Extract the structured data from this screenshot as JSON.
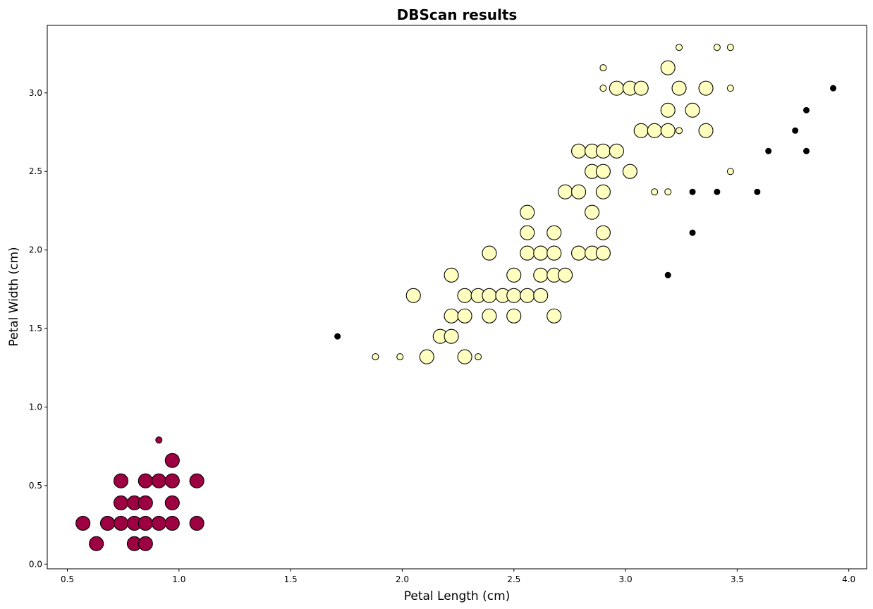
{
  "chart_data": {
    "type": "scatter",
    "title": "DBScan results",
    "xlabel": "Petal Length (cm)",
    "ylabel": "Petal Width (cm)",
    "xlim": [
      0.41,
      4.08
    ],
    "ylim": [
      -0.03,
      3.43
    ],
    "xticks": [
      0.5,
      1.0,
      1.5,
      2.0,
      2.5,
      3.0,
      3.5,
      4.0
    ],
    "xtick_labels": [
      "0.5",
      "1.0",
      "1.5",
      "2.0",
      "2.5",
      "3.0",
      "3.5",
      "4.0"
    ],
    "yticks": [
      0.0,
      0.5,
      1.0,
      1.5,
      2.0,
      2.5,
      3.0
    ],
    "ytick_labels": [
      "0.0",
      "0.5",
      "1.0",
      "1.5",
      "2.0",
      "2.5",
      "3.0"
    ],
    "grid": false,
    "legend": "none",
    "marker_sizes": {
      "core": "large",
      "border": "small",
      "noise": "small"
    },
    "series": [
      {
        "color": "#9e0142",
        "core": [
          [
            0.57,
            0.26
          ],
          [
            0.63,
            0.13
          ],
          [
            0.68,
            0.26
          ],
          [
            0.74,
            0.26
          ],
          [
            0.74,
            0.39
          ],
          [
            0.74,
            0.53
          ],
          [
            0.8,
            0.13
          ],
          [
            0.8,
            0.26
          ],
          [
            0.8,
            0.39
          ],
          [
            0.85,
            0.13
          ],
          [
            0.85,
            0.26
          ],
          [
            0.85,
            0.39
          ],
          [
            0.85,
            0.53
          ],
          [
            0.91,
            0.26
          ],
          [
            0.91,
            0.53
          ],
          [
            0.97,
            0.26
          ],
          [
            0.97,
            0.39
          ],
          [
            0.97,
            0.53
          ],
          [
            0.97,
            0.66
          ],
          [
            1.08,
            0.26
          ],
          [
            1.08,
            0.53
          ]
        ],
        "border": [
          [
            0.91,
            0.79
          ]
        ]
      },
      {
        "color": "#ffffbf",
        "core": [
          [
            2.05,
            1.71
          ],
          [
            2.11,
            1.32
          ],
          [
            2.17,
            1.45
          ],
          [
            2.22,
            1.45
          ],
          [
            2.22,
            1.58
          ],
          [
            2.22,
            1.84
          ],
          [
            2.28,
            1.32
          ],
          [
            2.28,
            1.58
          ],
          [
            2.28,
            1.71
          ],
          [
            2.34,
            1.71
          ],
          [
            2.39,
            1.58
          ],
          [
            2.39,
            1.71
          ],
          [
            2.39,
            1.98
          ],
          [
            2.45,
            1.71
          ],
          [
            2.5,
            1.58
          ],
          [
            2.5,
            1.71
          ],
          [
            2.5,
            1.84
          ],
          [
            2.56,
            1.71
          ],
          [
            2.56,
            1.98
          ],
          [
            2.56,
            2.11
          ],
          [
            2.56,
            2.24
          ],
          [
            2.62,
            1.71
          ],
          [
            2.62,
            1.84
          ],
          [
            2.62,
            1.98
          ],
          [
            2.68,
            1.58
          ],
          [
            2.68,
            1.84
          ],
          [
            2.68,
            1.98
          ],
          [
            2.68,
            2.11
          ],
          [
            2.73,
            1.84
          ],
          [
            2.73,
            2.37
          ],
          [
            2.79,
            1.98
          ],
          [
            2.79,
            2.37
          ],
          [
            2.79,
            2.63
          ],
          [
            2.85,
            1.98
          ],
          [
            2.85,
            2.24
          ],
          [
            2.85,
            2.5
          ],
          [
            2.85,
            2.63
          ],
          [
            2.9,
            1.98
          ],
          [
            2.9,
            2.11
          ],
          [
            2.9,
            2.37
          ],
          [
            2.9,
            2.5
          ],
          [
            2.9,
            2.63
          ],
          [
            2.96,
            2.63
          ],
          [
            2.96,
            3.03
          ],
          [
            3.02,
            2.5
          ],
          [
            3.02,
            3.03
          ],
          [
            3.07,
            2.76
          ],
          [
            3.07,
            3.03
          ],
          [
            3.13,
            2.76
          ],
          [
            3.19,
            2.76
          ],
          [
            3.19,
            2.89
          ],
          [
            3.19,
            3.16
          ],
          [
            3.24,
            3.03
          ],
          [
            3.3,
            2.89
          ],
          [
            3.36,
            2.76
          ],
          [
            3.36,
            3.03
          ]
        ],
        "border": [
          [
            1.88,
            1.32
          ],
          [
            1.99,
            1.32
          ],
          [
            2.34,
            1.32
          ],
          [
            2.9,
            3.03
          ],
          [
            2.9,
            3.16
          ],
          [
            3.13,
            2.37
          ],
          [
            3.19,
            2.37
          ],
          [
            3.24,
            2.76
          ],
          [
            3.24,
            3.29
          ],
          [
            3.41,
            3.29
          ],
          [
            3.47,
            2.5
          ],
          [
            3.47,
            3.03
          ],
          [
            3.47,
            3.29
          ]
        ]
      }
    ],
    "noise": {
      "color": "#000000",
      "points": [
        [
          1.71,
          1.45
        ],
        [
          3.19,
          1.84
        ],
        [
          3.3,
          2.11
        ],
        [
          3.3,
          2.37
        ],
        [
          3.41,
          2.37
        ],
        [
          3.59,
          2.37
        ],
        [
          3.64,
          2.63
        ],
        [
          3.76,
          2.76
        ],
        [
          3.81,
          2.63
        ],
        [
          3.81,
          2.89
        ],
        [
          3.93,
          3.03
        ]
      ]
    }
  }
}
